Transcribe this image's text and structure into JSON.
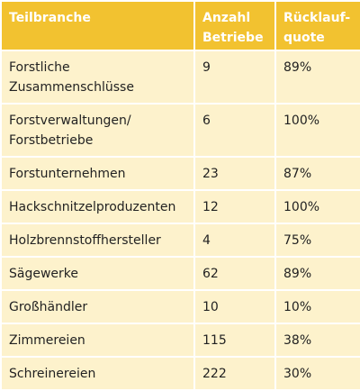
{
  "table": {
    "header": [
      "Teilbranche",
      "Anzahl\nBetriebe",
      "Rücklauf-\nquote"
    ],
    "rows": [
      [
        "Forstliche\nZusammenschlüsse",
        9,
        "89%"
      ],
      [
        "Forstverwaltungen/\nForstbetriebe",
        6,
        "100%"
      ],
      [
        "Forstunternehmen",
        23,
        "87%"
      ],
      [
        "Hackschnitzelproduzenten",
        12,
        "100%"
      ],
      [
        "Holzbrennstoffhersteller",
        4,
        "75%"
      ],
      [
        "Sägewerke",
        62,
        "89%"
      ],
      [
        "Großhändler",
        10,
        "10%"
      ],
      [
        "Zimmereien",
        115,
        "38%"
      ],
      [
        "Schreinereien",
        222,
        "30%"
      ]
    ]
  }
}
